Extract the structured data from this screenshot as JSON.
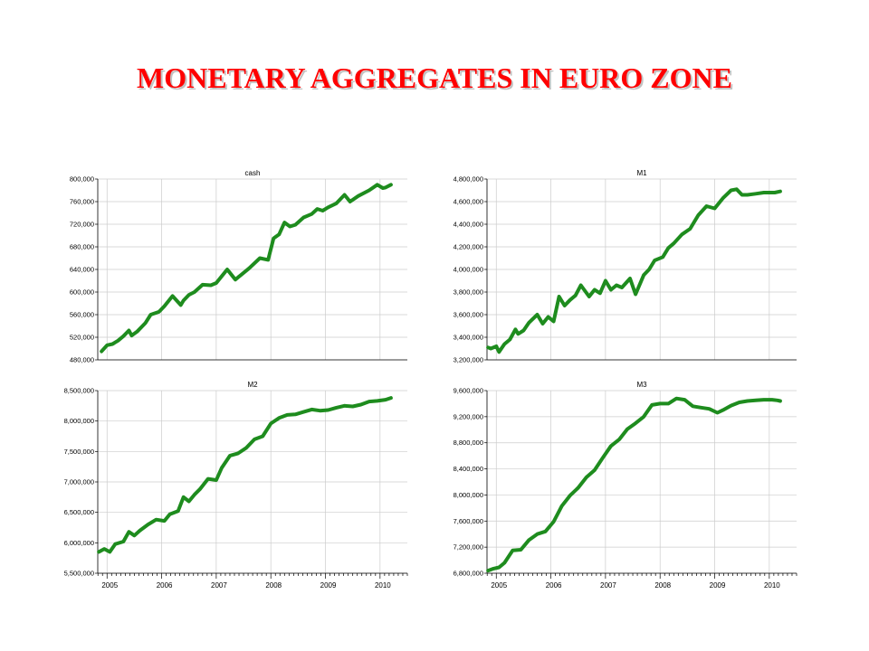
{
  "slide": {
    "title": "MONETARY AGGREGATES IN EURO ZONE",
    "title_color": "#ff0000"
  },
  "colors": {
    "series": "#1e8c1e",
    "grid": "#cccccc",
    "axis": "#000000"
  },
  "x_tick_labels": [
    "2005",
    "2006",
    "2007",
    "2008",
    "2009",
    "2010"
  ],
  "chart_data": [
    {
      "type": "line",
      "title": "cash",
      "xlabel": "",
      "ylabel": "",
      "xlim": [
        2004.83,
        2010.5
      ],
      "ylim": [
        480000,
        800000
      ],
      "grid": true,
      "yticks": [
        480000,
        520000,
        560000,
        600000,
        640000,
        680000,
        720000,
        760000,
        800000
      ],
      "ytick_labels": [
        "480,000",
        "520,000",
        "560,000",
        "600,000",
        "640,000",
        "680,000",
        "720,000",
        "760,000",
        "800,000"
      ],
      "x": [
        2004.9,
        2005.0,
        2005.1,
        2005.2,
        2005.3,
        2005.4,
        2005.45,
        2005.55,
        2005.7,
        2005.8,
        2005.95,
        2006.05,
        2006.2,
        2006.35,
        2006.4,
        2006.5,
        2006.6,
        2006.75,
        2006.9,
        2007.0,
        2007.2,
        2007.35,
        2007.4,
        2007.45,
        2007.6,
        2007.8,
        2007.95,
        2008.05,
        2008.15,
        2008.25,
        2008.35,
        2008.45,
        2008.6,
        2008.75,
        2008.85,
        2008.95,
        2009.05,
        2009.2,
        2009.35,
        2009.45,
        2009.6,
        2009.8,
        2009.95,
        2010.05,
        2010.1,
        2010.2
      ],
      "y": [
        495000,
        506000,
        508000,
        514000,
        522000,
        532000,
        523000,
        530000,
        545000,
        560000,
        565000,
        575000,
        593000,
        577000,
        585000,
        595000,
        600000,
        613000,
        612000,
        616000,
        640000,
        622000,
        626000,
        630000,
        642000,
        660000,
        657000,
        695000,
        702000,
        723000,
        716000,
        719000,
        732000,
        738000,
        747000,
        744000,
        750000,
        757000,
        772000,
        760000,
        770000,
        780000,
        790000,
        784000,
        785000,
        790000
      ]
    },
    {
      "type": "line",
      "title": "M1",
      "xlabel": "",
      "ylabel": "",
      "xlim": [
        2004.83,
        2010.5
      ],
      "ylim": [
        3200000,
        4800000
      ],
      "grid": true,
      "yticks": [
        3200000,
        3400000,
        3600000,
        3800000,
        4000000,
        4200000,
        4400000,
        4600000,
        4800000
      ],
      "ytick_labels": [
        "3,200,000",
        "3,400,000",
        "3,600,000",
        "3,800,000",
        "4,000,000",
        "4,200,000",
        "4,400,000",
        "4,600,000",
        "4,800,000"
      ],
      "x": [
        2004.85,
        2004.9,
        2005.0,
        2005.05,
        2005.15,
        2005.25,
        2005.35,
        2005.4,
        2005.5,
        2005.6,
        2005.75,
        2005.85,
        2005.95,
        2006.05,
        2006.15,
        2006.25,
        2006.35,
        2006.45,
        2006.55,
        2006.7,
        2006.8,
        2006.9,
        2007.0,
        2007.1,
        2007.2,
        2007.3,
        2007.45,
        2007.55,
        2007.7,
        2007.8,
        2007.9,
        2008.05,
        2008.15,
        2008.25,
        2008.4,
        2008.55,
        2008.7,
        2008.85,
        2009.0,
        2009.15,
        2009.3,
        2009.4,
        2009.5,
        2009.6,
        2009.75,
        2009.9,
        2010.0,
        2010.1,
        2010.2
      ],
      "y": [
        3310000,
        3300000,
        3320000,
        3270000,
        3340000,
        3380000,
        3470000,
        3430000,
        3460000,
        3530000,
        3600000,
        3520000,
        3580000,
        3540000,
        3760000,
        3680000,
        3730000,
        3770000,
        3860000,
        3760000,
        3820000,
        3790000,
        3900000,
        3820000,
        3860000,
        3840000,
        3920000,
        3780000,
        3950000,
        4000000,
        4080000,
        4110000,
        4190000,
        4230000,
        4310000,
        4360000,
        4480000,
        4560000,
        4540000,
        4630000,
        4700000,
        4710000,
        4660000,
        4660000,
        4670000,
        4680000,
        4680000,
        4680000,
        4690000
      ]
    },
    {
      "type": "line",
      "title": "M2",
      "xlabel": "",
      "ylabel": "",
      "xlim": [
        2004.83,
        2010.5
      ],
      "ylim": [
        5500000,
        8500000
      ],
      "grid": true,
      "yticks": [
        5500000,
        6000000,
        6500000,
        7000000,
        7500000,
        8000000,
        8500000
      ],
      "ytick_labels": [
        "5,500,000",
        "6,000,000",
        "6,500,000",
        "7,000,000",
        "7,500,000",
        "8,000,000",
        "8,500,000"
      ],
      "x": [
        2004.85,
        2004.95,
        2005.05,
        2005.15,
        2005.3,
        2005.4,
        2005.5,
        2005.6,
        2005.75,
        2005.9,
        2006.05,
        2006.15,
        2006.3,
        2006.4,
        2006.5,
        2006.6,
        2006.7,
        2006.85,
        2007.0,
        2007.1,
        2007.25,
        2007.4,
        2007.55,
        2007.7,
        2007.85,
        2008.0,
        2008.15,
        2008.3,
        2008.45,
        2008.6,
        2008.75,
        2008.9,
        2009.05,
        2009.2,
        2009.35,
        2009.5,
        2009.65,
        2009.8,
        2009.95,
        2010.1,
        2010.2
      ],
      "y": [
        5850000,
        5900000,
        5850000,
        5980000,
        6020000,
        6180000,
        6120000,
        6200000,
        6300000,
        6380000,
        6360000,
        6470000,
        6520000,
        6750000,
        6680000,
        6790000,
        6880000,
        7050000,
        7030000,
        7230000,
        7430000,
        7470000,
        7560000,
        7700000,
        7750000,
        7960000,
        8050000,
        8100000,
        8110000,
        8150000,
        8190000,
        8170000,
        8180000,
        8220000,
        8250000,
        8240000,
        8270000,
        8320000,
        8330000,
        8350000,
        8380000
      ]
    },
    {
      "type": "line",
      "title": "M3",
      "xlabel": "",
      "ylabel": "",
      "xlim": [
        2004.83,
        2010.5
      ],
      "ylim": [
        6800000,
        9600000
      ],
      "grid": true,
      "yticks": [
        6800000,
        7200000,
        7600000,
        8000000,
        8400000,
        8800000,
        9200000,
        9600000
      ],
      "ytick_labels": [
        "6,800,000",
        "7,200,000",
        "7,600,000",
        "8,000,000",
        "8,400,000",
        "8,800,000",
        "9,200,000",
        "9,600,000"
      ],
      "x": [
        2004.85,
        2004.95,
        2005.05,
        2005.15,
        2005.3,
        2005.45,
        2005.6,
        2005.75,
        2005.9,
        2006.05,
        2006.2,
        2006.35,
        2006.5,
        2006.65,
        2006.8,
        2006.95,
        2007.1,
        2007.25,
        2007.4,
        2007.55,
        2007.7,
        2007.85,
        2008.0,
        2008.15,
        2008.3,
        2008.45,
        2008.6,
        2008.75,
        2008.9,
        2009.05,
        2009.15,
        2009.3,
        2009.45,
        2009.6,
        2009.75,
        2009.9,
        2010.05,
        2010.15,
        2010.2
      ],
      "y": [
        6840000,
        6870000,
        6890000,
        6960000,
        7150000,
        7160000,
        7310000,
        7400000,
        7440000,
        7590000,
        7830000,
        7990000,
        8110000,
        8270000,
        8380000,
        8570000,
        8750000,
        8850000,
        9010000,
        9100000,
        9200000,
        9380000,
        9400000,
        9400000,
        9480000,
        9460000,
        9360000,
        9340000,
        9320000,
        9260000,
        9300000,
        9370000,
        9420000,
        9440000,
        9450000,
        9460000,
        9460000,
        9450000,
        9440000
      ]
    }
  ]
}
